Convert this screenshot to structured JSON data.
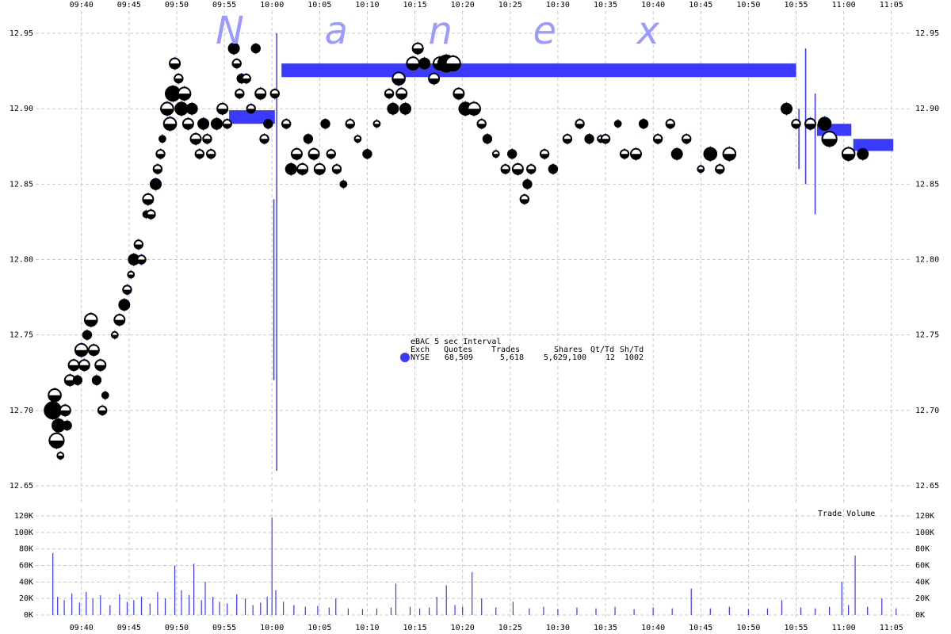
{
  "chart_data": [
    {
      "type": "scatter",
      "watermark": "N a n e x",
      "legend_title": "eBAC 5 sec Interval",
      "legend_columns": [
        "Exch",
        "Quotes",
        "Trades",
        "Shares",
        "Qt/Td",
        "Sh/Td"
      ],
      "legend_cells": [
        "68,509",
        "5,618",
        "5,629,100",
        "12",
        "1002"
      ],
      "xlim": [
        575.2,
        667.1
      ],
      "xticks": [
        {
          "value": 580,
          "label": "09:40"
        },
        {
          "value": 585,
          "label": "09:45"
        },
        {
          "value": 590,
          "label": "09:50"
        },
        {
          "value": 595,
          "label": "09:55"
        },
        {
          "value": 600,
          "label": "10:00"
        },
        {
          "value": 605,
          "label": "10:05"
        },
        {
          "value": 610,
          "label": "10:10"
        },
        {
          "value": 615,
          "label": "10:15"
        },
        {
          "value": 620,
          "label": "10:20"
        },
        {
          "value": 625,
          "label": "10:25"
        },
        {
          "value": 630,
          "label": "10:30"
        },
        {
          "value": 635,
          "label": "10:35"
        },
        {
          "value": 640,
          "label": "10:40"
        },
        {
          "value": 645,
          "label": "10:45"
        },
        {
          "value": 650,
          "label": "10:50"
        },
        {
          "value": 655,
          "label": "10:55"
        },
        {
          "value": 660,
          "label": "11:00"
        },
        {
          "value": 665,
          "label": "11:05"
        }
      ],
      "ylim": [
        12.64,
        12.96
      ],
      "yticks": [
        12.65,
        {
          "value": 12.7,
          "label": "12.70"
        },
        12.75,
        {
          "value": 12.8,
          "label": "12.80"
        },
        12.85,
        {
          "value": 12.9,
          "label": "12.90"
        },
        12.95
      ],
      "grid": true,
      "series": [
        {
          "name": "NYSE",
          "color": "#3a3aff",
          "x": [
            577.0,
            577.2,
            577.4,
            577.6,
            577.8,
            578.3,
            578.5,
            578.8,
            579.2,
            579.6,
            580.0,
            580.3,
            580.6,
            581.0,
            581.3,
            581.6,
            582.0,
            582.2,
            582.5,
            583.5,
            584.0,
            584.5,
            584.8,
            585.2,
            585.5,
            586.0,
            586.3,
            586.8,
            587.0,
            587.3,
            587.8,
            588.0,
            588.3,
            588.5,
            589.0,
            589.3,
            589.6,
            589.8,
            590.2,
            590.5,
            590.8,
            591.2,
            591.6,
            592.0,
            592.4,
            592.8,
            593.2,
            593.6,
            594.2,
            594.8,
            595.3,
            596.0,
            596.3,
            596.6,
            596.8,
            597.3,
            597.8,
            598.3,
            598.8,
            599.2,
            599.6,
            600.3,
            601.5,
            602.0,
            602.6,
            603.2,
            603.8,
            604.4,
            605.0,
            605.6,
            606.2,
            606.8,
            607.5,
            608.2,
            609.0,
            610.0,
            611.0,
            612.3,
            612.7,
            613.3,
            613.6,
            614.0,
            614.8,
            615.3,
            616.0,
            617.0,
            617.6,
            618.3,
            619.0,
            619.6,
            620.3,
            621.2,
            622.0,
            622.6,
            623.5,
            624.5,
            625.2,
            625.8,
            626.5,
            626.8,
            627.2,
            628.6,
            629.5,
            631.0,
            632.3,
            633.3,
            634.5,
            635.0,
            636.3,
            637.0,
            638.2,
            639.0,
            640.5,
            641.8,
            642.5,
            643.5,
            645.0,
            646.0,
            647.0,
            648.0,
            654.0,
            655.0,
            656.5,
            658.0,
            658.5,
            660.5,
            662.0
          ],
          "values": [
            12.7,
            12.71,
            12.68,
            12.69,
            12.67,
            12.7,
            12.69,
            12.72,
            12.73,
            12.72,
            12.74,
            12.73,
            12.75,
            12.76,
            12.74,
            12.72,
            12.73,
            12.7,
            12.71,
            12.75,
            12.76,
            12.77,
            12.78,
            12.79,
            12.8,
            12.81,
            12.8,
            12.83,
            12.84,
            12.83,
            12.85,
            12.86,
            12.87,
            12.88,
            12.9,
            12.89,
            12.91,
            12.93,
            12.92,
            12.9,
            12.91,
            12.89,
            12.9,
            12.88,
            12.87,
            12.89,
            12.88,
            12.87,
            12.89,
            12.9,
            12.89,
            12.94,
            12.93,
            12.91,
            12.92,
            12.92,
            12.9,
            12.94,
            12.91,
            12.88,
            12.89,
            12.91,
            12.89,
            12.86,
            12.87,
            12.86,
            12.88,
            12.87,
            12.86,
            12.89,
            12.87,
            12.86,
            12.85,
            12.89,
            12.88,
            12.87,
            12.89,
            12.91,
            12.9,
            12.92,
            12.91,
            12.9,
            12.93,
            12.94,
            12.93,
            12.92,
            12.93,
            12.93,
            12.93,
            12.91,
            12.9,
            12.9,
            12.89,
            12.88,
            12.87,
            12.86,
            12.87,
            12.86,
            12.84,
            12.85,
            12.86,
            12.87,
            12.86,
            12.88,
            12.89,
            12.88,
            12.88,
            12.88,
            12.89,
            12.87,
            12.87,
            12.89,
            12.88,
            12.89,
            12.87,
            12.88,
            12.86,
            12.87,
            12.86,
            12.87,
            12.9,
            12.89,
            12.89,
            12.89,
            12.88,
            12.87,
            12.87
          ],
          "sizes": [
            8,
            6,
            7,
            6,
            3,
            5,
            4,
            5,
            5,
            4,
            6,
            5,
            4,
            6,
            5,
            4,
            5,
            4,
            3,
            3,
            5,
            5,
            4,
            3,
            5,
            4,
            4,
            3,
            5,
            4,
            5,
            4,
            4,
            3,
            6,
            6,
            7,
            5,
            4,
            6,
            6,
            5,
            5,
            5,
            4,
            5,
            4,
            4,
            5,
            5,
            4,
            5,
            4,
            4,
            4,
            4,
            4,
            4,
            5,
            4,
            4,
            4,
            4,
            5,
            5,
            5,
            4,
            5,
            5,
            4,
            4,
            4,
            3,
            4,
            3,
            4,
            3,
            4,
            5,
            6,
            5,
            5,
            6,
            5,
            5,
            5,
            6,
            8,
            7,
            5,
            6,
            6,
            4,
            4,
            3,
            4,
            4,
            5,
            4,
            4,
            4,
            4,
            4,
            4,
            4,
            4,
            3,
            4,
            3,
            4,
            5,
            4,
            4,
            4,
            5,
            4,
            3,
            6,
            4,
            6,
            5,
            4,
            5,
            6,
            7,
            6,
            5
          ]
        }
      ],
      "quote_band": {
        "x0": [
          595.5,
          601.0,
          657.2,
          661.0
        ],
        "x1": [
          600.3,
          655.0,
          660.8,
          665.2
        ],
        "low": [
          12.89,
          12.921,
          12.882,
          12.872
        ],
        "high": [
          12.899,
          12.93,
          12.89,
          12.88
        ]
      },
      "quote_ranges": {
        "x": [
          600.2,
          600.5,
          655.3,
          656.0,
          657.0
        ],
        "low": [
          12.72,
          12.66,
          12.86,
          12.85,
          12.83
        ],
        "high": [
          12.84,
          12.95,
          12.9,
          12.94,
          12.91
        ]
      }
    },
    {
      "type": "bar",
      "title": "Trade Volume",
      "ylim": [
        0,
        120000
      ],
      "yticks": [
        {
          "value": 0,
          "label": "0K"
        },
        {
          "value": 20000,
          "label": "20K"
        },
        {
          "value": 40000,
          "label": "40K"
        },
        {
          "value": 60000,
          "label": "60K"
        },
        {
          "value": 80000,
          "label": "80K"
        },
        {
          "value": 100000,
          "label": "100K"
        },
        {
          "value": 120000,
          "label": "120K"
        }
      ],
      "color": "#3a3aff",
      "x": [
        577.0,
        577.5,
        578.2,
        579.0,
        579.8,
        580.5,
        581.2,
        582.0,
        583.0,
        584.0,
        584.8,
        585.5,
        586.3,
        587.2,
        588.0,
        588.8,
        589.8,
        590.5,
        591.3,
        591.8,
        592.6,
        593.0,
        593.8,
        594.5,
        595.3,
        596.3,
        597.2,
        598.0,
        598.8,
        599.5,
        600.0,
        600.4,
        601.2,
        602.3,
        603.5,
        604.8,
        606.0,
        606.7,
        608.0,
        609.5,
        611.0,
        612.5,
        613.0,
        614.5,
        615.5,
        616.5,
        617.3,
        618.3,
        619.2,
        620.0,
        621.0,
        622.0,
        623.5,
        625.3,
        627.0,
        628.5,
        630.0,
        632.0,
        634.0,
        636.0,
        638.0,
        640.0,
        642.0,
        644.0,
        646.0,
        648.0,
        650.0,
        652.0,
        653.5,
        655.5,
        657.0,
        658.5,
        659.8,
        660.5,
        661.2,
        662.5,
        664.0,
        665.5
      ],
      "values": [
        75000,
        22000,
        18000,
        26000,
        15000,
        28000,
        20000,
        24000,
        12000,
        25000,
        16000,
        18000,
        22000,
        14000,
        28000,
        20000,
        60000,
        30000,
        24000,
        62000,
        18000,
        40000,
        22000,
        16000,
        14000,
        25000,
        20000,
        12000,
        15000,
        22000,
        118000,
        30000,
        16000,
        12000,
        10000,
        11000,
        9000,
        20000,
        8000,
        7000,
        8000,
        9000,
        38000,
        10000,
        8000,
        9000,
        22000,
        36000,
        12000,
        10000,
        52000,
        20000,
        9000,
        16000,
        8000,
        10000,
        7000,
        9000,
        8000,
        10000,
        7000,
        9000,
        8000,
        32000,
        8000,
        10000,
        7000,
        8000,
        18000,
        9000,
        8000,
        10000,
        40000,
        12000,
        72000,
        10000,
        20000,
        8000
      ]
    }
  ]
}
